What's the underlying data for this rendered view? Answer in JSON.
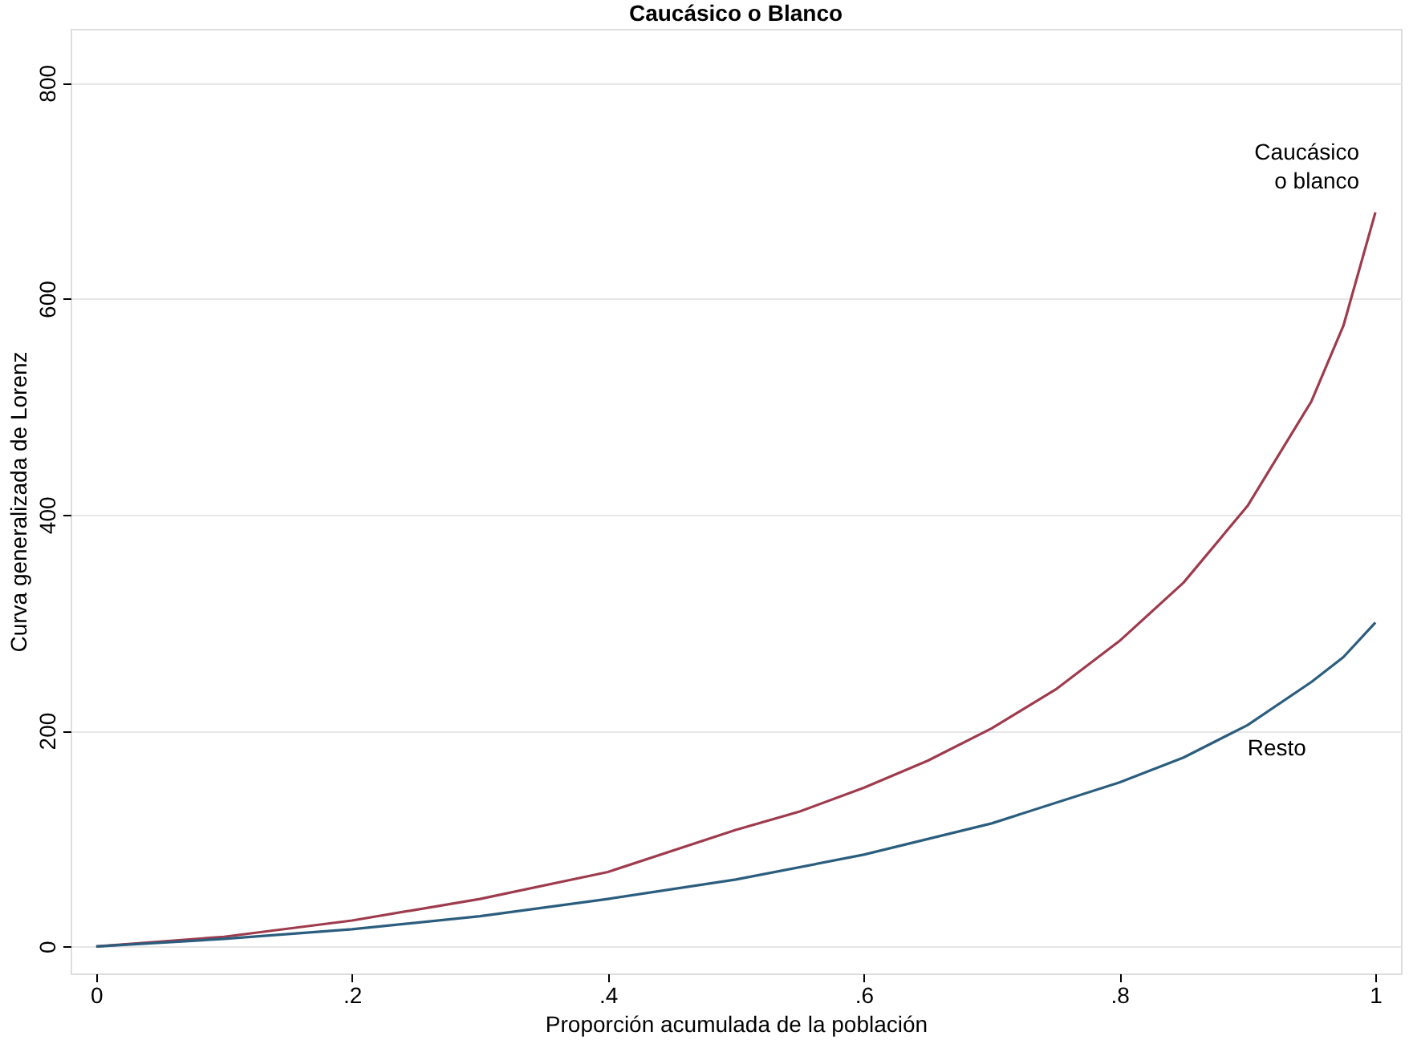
{
  "chart_data": {
    "type": "line",
    "title": "Caucásico o Blanco",
    "xlabel": "Proporción acumulada de la población",
    "ylabel": "Curva generalizada de Lorenz",
    "xlim": [
      -0.02,
      1.02
    ],
    "ylim": [
      -25,
      850
    ],
    "xticks": [
      0,
      {
        "value": 0.2,
        "label": ".2"
      },
      {
        "value": 0.4,
        "label": ".4"
      },
      {
        "value": 0.6,
        "label": ".6"
      },
      {
        "value": 0.8,
        "label": ".8"
      },
      1
    ],
    "yticks": [
      0,
      200,
      400,
      600,
      800
    ],
    "grid": "y",
    "legend": false,
    "line_style": "solid",
    "marker": "none",
    "series": [
      {
        "name": "Caucásico o blanco",
        "color": "#9e3b4d",
        "x": [
          0,
          0.1,
          0.2,
          0.3,
          0.4,
          0.5,
          0.55,
          0.6,
          0.65,
          0.7,
          0.75,
          0.8,
          0.85,
          0.9,
          0.95,
          0.975,
          1
        ],
        "values": [
          0,
          9,
          24,
          44,
          69,
          108,
          125,
          147,
          172,
          202,
          238,
          283,
          337,
          408,
          505,
          575,
          680
        ]
      },
      {
        "name": "Resto",
        "color": "#2b5d7e",
        "x": [
          0,
          0.1,
          0.2,
          0.3,
          0.4,
          0.5,
          0.6,
          0.7,
          0.8,
          0.85,
          0.9,
          0.95,
          0.975,
          1
        ],
        "values": [
          0,
          7,
          16,
          28,
          44,
          62,
          85,
          114,
          152,
          175,
          205,
          245,
          268,
          300
        ]
      }
    ]
  }
}
